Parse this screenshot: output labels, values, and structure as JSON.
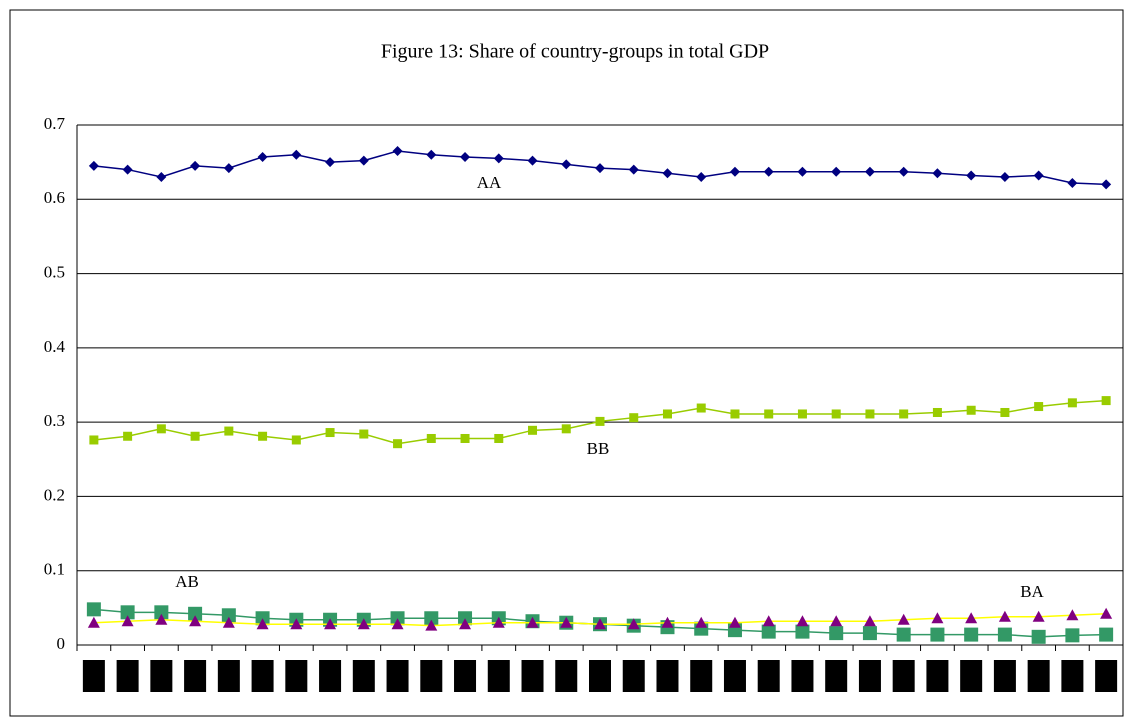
{
  "chart_data": {
    "type": "line",
    "title": "Figure 13: Share of country-groups in total GDP",
    "categories": [
      null,
      null,
      null,
      null,
      null,
      null,
      null,
      null,
      null,
      null,
      null,
      null,
      null,
      null,
      null,
      null,
      null,
      null,
      null,
      null,
      null,
      null,
      null,
      null,
      null,
      null,
      null,
      null,
      null,
      null,
      null
    ],
    "series": [
      {
        "name": "AA",
        "color": "#000080",
        "marker_color": "#000080",
        "marker": "diamond",
        "values": [
          0.645,
          0.64,
          0.63,
          0.645,
          0.642,
          0.657,
          0.66,
          0.65,
          0.652,
          0.665,
          0.66,
          0.657,
          0.655,
          0.652,
          0.647,
          0.642,
          0.64,
          0.635,
          0.63,
          0.637,
          0.637,
          0.637,
          0.637,
          0.637,
          0.637,
          0.635,
          0.632,
          0.63,
          0.632,
          0.622,
          0.62
        ]
      },
      {
        "name": "BB",
        "color": "#99cc00",
        "marker_color": "#99cc00",
        "marker": "square",
        "values": [
          0.276,
          0.281,
          0.291,
          0.281,
          0.288,
          0.281,
          0.276,
          0.286,
          0.284,
          0.271,
          0.278,
          0.278,
          0.278,
          0.289,
          0.291,
          0.301,
          0.306,
          0.311,
          0.319,
          0.311,
          0.311,
          0.311,
          0.311,
          0.311,
          0.311,
          0.313,
          0.316,
          0.313,
          0.321,
          0.326,
          0.329
        ]
      },
      {
        "name": "AB",
        "color": "#339966",
        "marker_color": "#339966",
        "marker": "big-square",
        "values": [
          0.048,
          0.044,
          0.044,
          0.042,
          0.04,
          0.036,
          0.034,
          0.034,
          0.034,
          0.036,
          0.036,
          0.036,
          0.036,
          0.032,
          0.03,
          0.028,
          0.026,
          0.024,
          0.022,
          0.02,
          0.018,
          0.018,
          0.016,
          0.016,
          0.014,
          0.014,
          0.014,
          0.014,
          0.011,
          0.013,
          0.014
        ]
      },
      {
        "name": "BA",
        "color": "#ffff00",
        "marker_color": "#800080",
        "marker": "triangle",
        "values": [
          0.03,
          0.032,
          0.034,
          0.032,
          0.03,
          0.028,
          0.028,
          0.028,
          0.028,
          0.028,
          0.026,
          0.028,
          0.03,
          0.03,
          0.03,
          0.028,
          0.028,
          0.03,
          0.03,
          0.03,
          0.032,
          0.032,
          0.032,
          0.032,
          0.034,
          0.036,
          0.036,
          0.038,
          0.038,
          0.04,
          0.042
        ]
      }
    ],
    "ylim": [
      0,
      0.7
    ],
    "yticks": [
      0,
      0.1,
      0.2,
      0.3,
      0.4,
      0.5,
      0.6,
      0.7
    ],
    "grid": true
  }
}
